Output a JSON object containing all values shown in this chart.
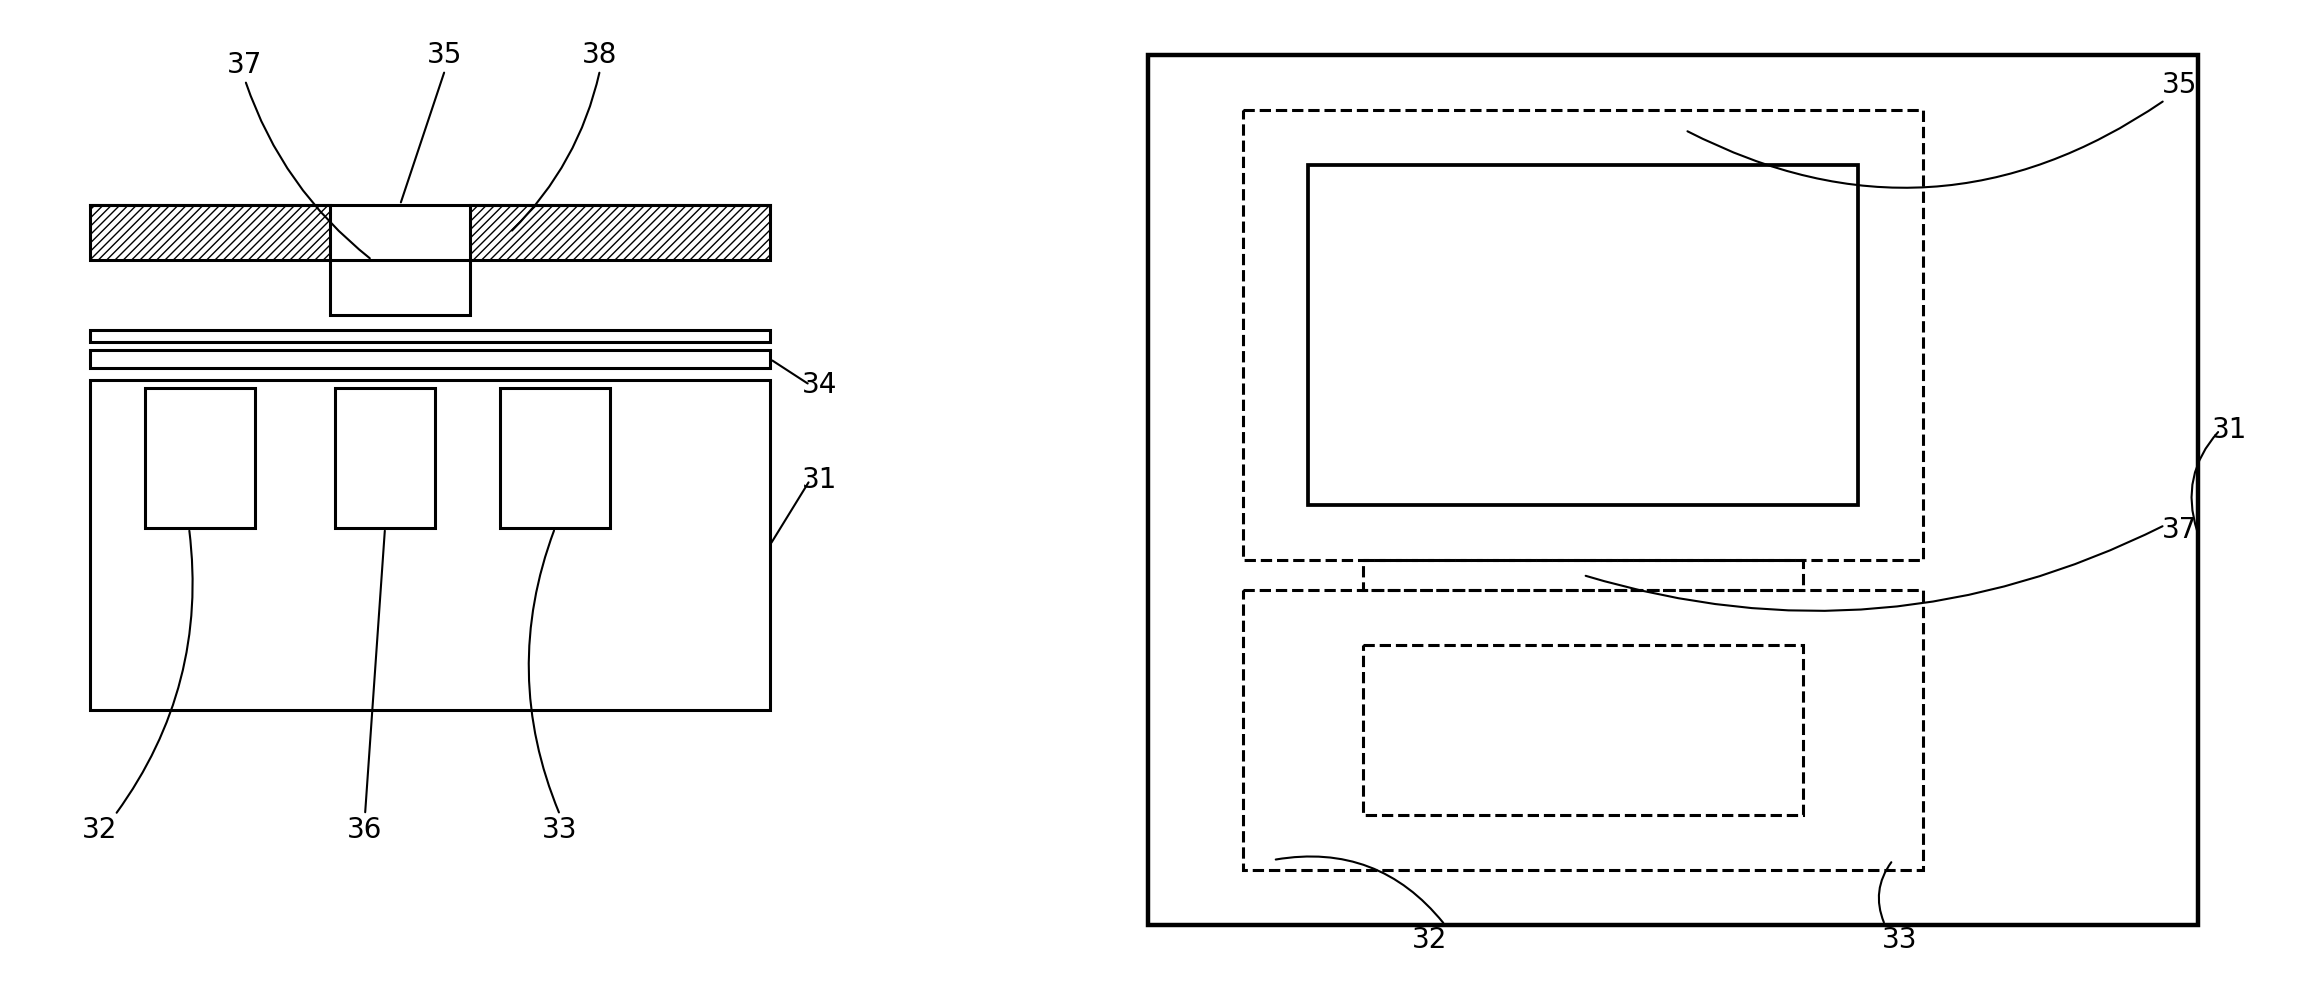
{
  "bg_color": "#ffffff",
  "line_color": "#000000",
  "fig_width": 22.97,
  "fig_height": 9.81,
  "dpi": 100,
  "label_fontsize": 20,
  "lw": 2.2
}
